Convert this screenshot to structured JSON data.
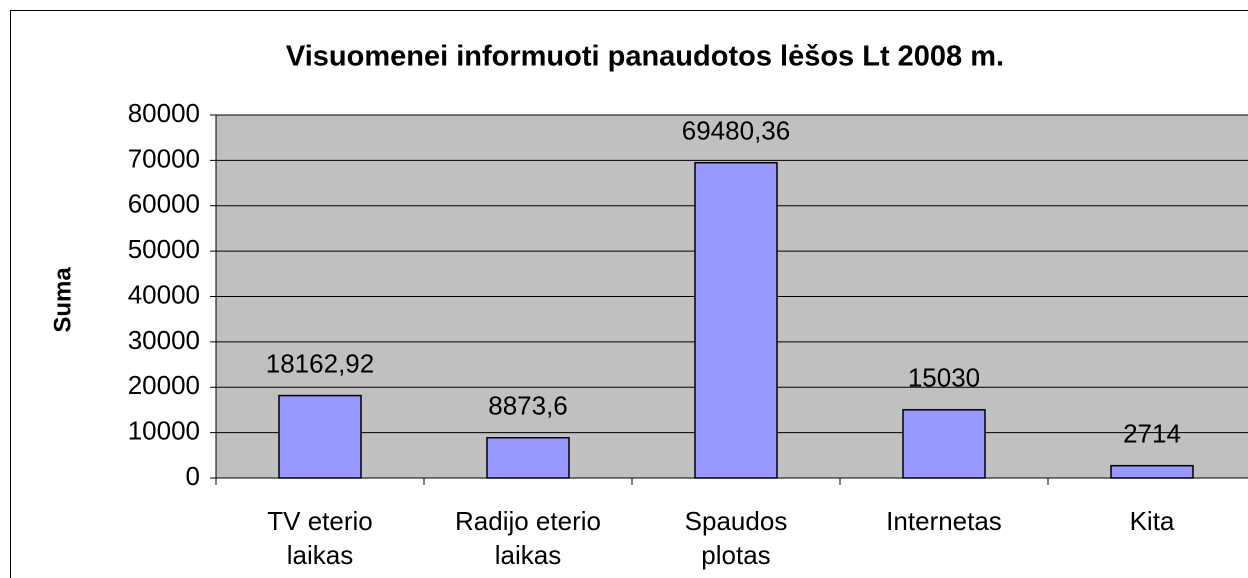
{
  "chart_data": {
    "type": "bar",
    "title": "Visuomenei informuoti panaudotos lėšos Lt 2008 m.",
    "y_label": "Suma",
    "categories": [
      [
        "TV eterio",
        "laikas"
      ],
      [
        "Radijo eterio",
        "laikas"
      ],
      [
        "Spaudos",
        "plotas"
      ],
      [
        "Internetas"
      ],
      [
        "Kita"
      ]
    ],
    "values": [
      18162.92,
      8873.6,
      69480.36,
      15030,
      2714
    ],
    "value_labels": [
      "18162,92",
      "8873,6",
      "69480,36",
      "15030",
      "2714"
    ],
    "color": "#9999ff",
    "ylim": [
      0,
      80000
    ],
    "yticks": [
      0,
      10000,
      20000,
      30000,
      40000,
      50000,
      60000,
      70000,
      80000
    ],
    "grid": true
  }
}
